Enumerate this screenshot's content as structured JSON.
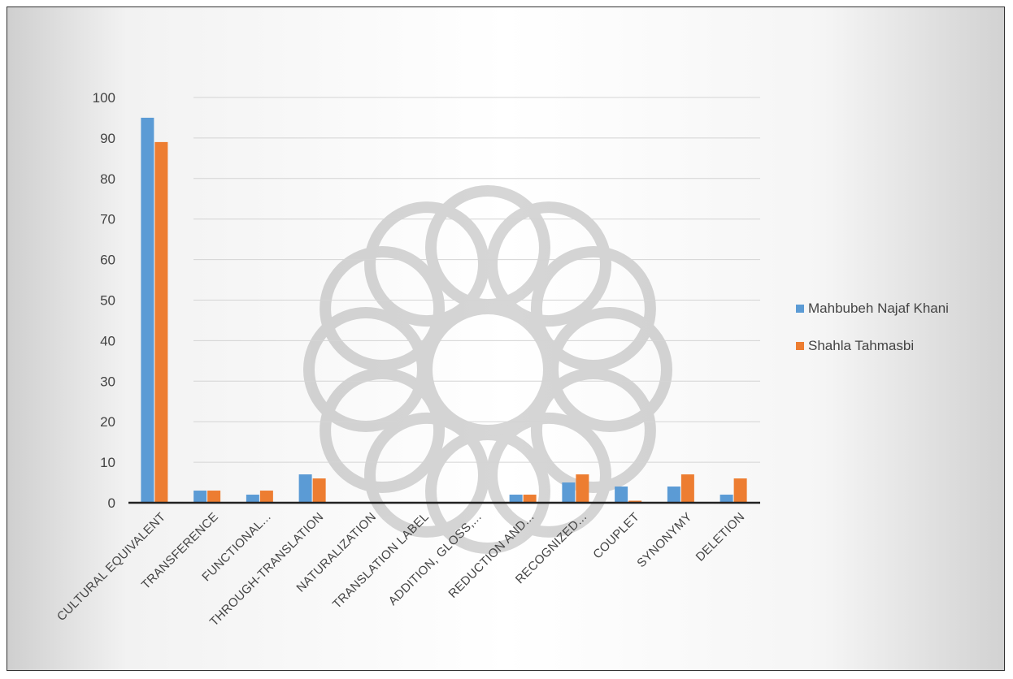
{
  "chart_data": {
    "type": "bar",
    "title": "",
    "xlabel": "",
    "ylabel": "",
    "ylim": [
      0,
      100
    ],
    "yticks": [
      0,
      10,
      20,
      30,
      40,
      50,
      60,
      70,
      80,
      90,
      100
    ],
    "grid": true,
    "legend_position": "right",
    "categories": [
      "CULTURAL EQUIVALENT",
      "TRANSFERENCE",
      "FUNCTIONAL...",
      "THROUGH-TRANSLATION",
      "NATURALIZATION",
      "TRANSLATION LABEL",
      "ADDITION, GLOSS,...",
      "REDUCTION AND...",
      "RECOGNIZED...",
      "COUPLET",
      "SYNONYMY",
      "DELETION"
    ],
    "series": [
      {
        "name": "Mahbubeh Najaf Khani",
        "color": "#5b9bd5",
        "values": [
          95,
          3,
          2,
          7,
          0,
          0,
          0,
          2,
          5,
          4,
          4,
          2
        ]
      },
      {
        "name": "Shahla Tahmasbi",
        "color": "#ed7d31",
        "values": [
          89,
          3,
          3,
          6,
          0,
          0,
          0,
          2,
          7,
          0.5,
          7,
          6
        ]
      }
    ]
  }
}
